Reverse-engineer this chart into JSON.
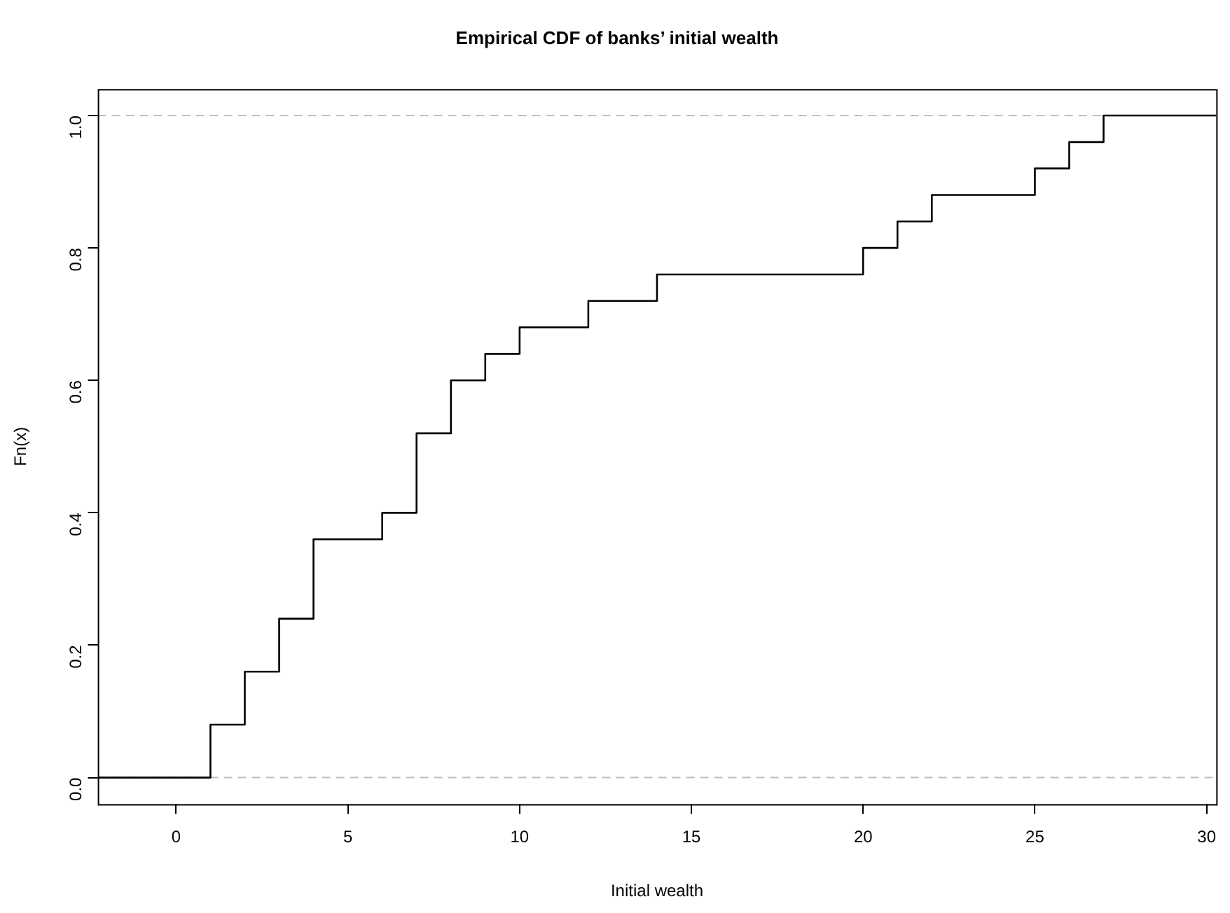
{
  "chart_data": {
    "type": "step",
    "title": "Empirical CDF of banks’ initial wealth",
    "xlabel": "Initial wealth",
    "ylabel": "Fn(x)",
    "x": [
      -2.28,
      1,
      2,
      3,
      4,
      6,
      7,
      8,
      9,
      10,
      12,
      14,
      20,
      21,
      22,
      25,
      26,
      27,
      30.28
    ],
    "series": [
      {
        "color": "#000000",
        "values": [
          0,
          0.08,
          0.16,
          0.24,
          0.36,
          0.4,
          0.52,
          0.6,
          0.64,
          0.68,
          0.72,
          0.76,
          0.8,
          0.84,
          0.88,
          0.92,
          0.96,
          1,
          1
        ]
      }
    ],
    "xlim": [
      -2.28,
      30.28
    ],
    "xticks": [
      0,
      5,
      10,
      15,
      20,
      25,
      30
    ],
    "ylim": [
      -0.04,
      1.04
    ],
    "yticks": [
      {
        "value": 0,
        "label": "0.0"
      },
      {
        "value": 0.2,
        "label": "0.2"
      },
      {
        "value": 0.4,
        "label": "0.4"
      },
      {
        "value": 0.6,
        "label": "0.6"
      },
      {
        "value": 0.8,
        "label": "0.8"
      },
      {
        "value": 1,
        "label": "1.0"
      }
    ],
    "ref_lines": [
      {
        "axis": "y",
        "value": 0,
        "color": "#bebebe",
        "line_style": "dashed"
      },
      {
        "axis": "y",
        "value": 1,
        "color": "#bebebe",
        "line_style": "dashed"
      }
    ],
    "grid": false,
    "legend": false,
    "marker": "none",
    "line_style": "solid"
  }
}
